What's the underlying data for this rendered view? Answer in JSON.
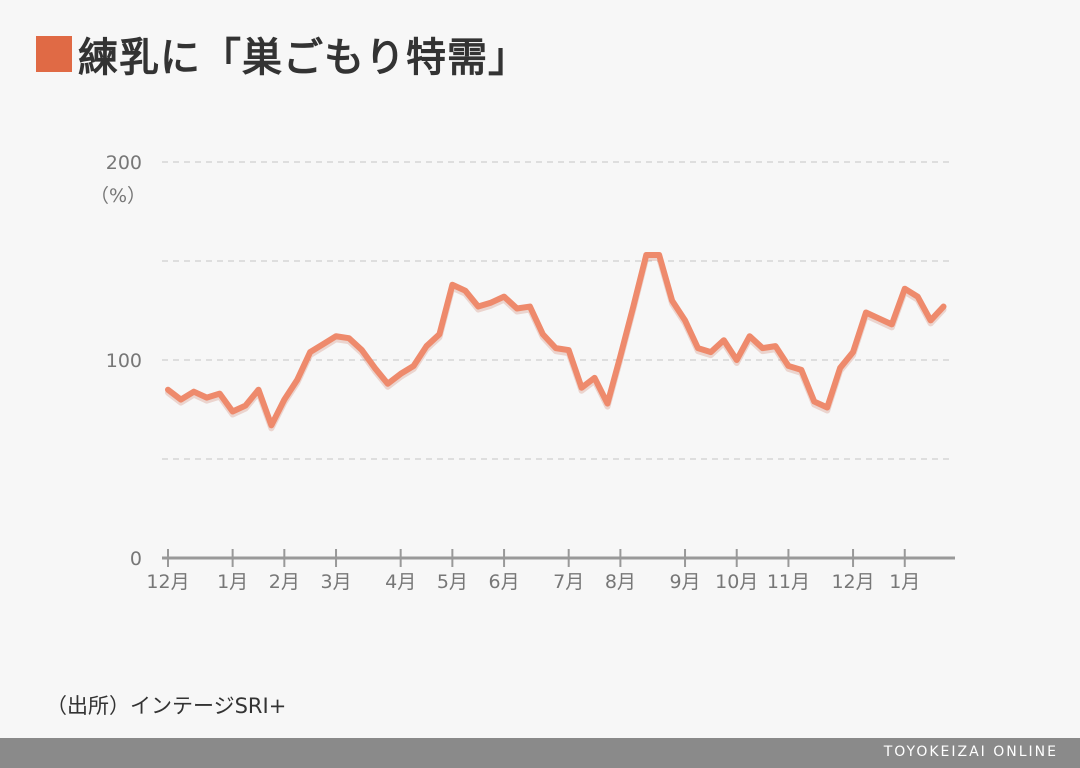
{
  "title": "練乳に「巣ごもり特需」",
  "source": "（出所）インテージSRI+",
  "footer_brand": "TOYOKEIZAI ONLINE",
  "colors": {
    "accent": "#e06a45",
    "line": "#ee8a6c",
    "axis": "#999999",
    "grid": "#d6d6d6"
  },
  "chart_data": {
    "type": "line",
    "title": "練乳に「巣ごもり特需」",
    "ylabel": "（%）",
    "ylim": [
      0,
      200
    ],
    "y_ticks": [
      {
        "value": 0,
        "label": "0"
      },
      {
        "value": 50,
        "label": ""
      },
      {
        "value": 100,
        "label": "100"
      },
      {
        "value": 150,
        "label": ""
      },
      {
        "value": 200,
        "label": "200"
      }
    ],
    "xlim": [
      0,
      60.5
    ],
    "x_ticks": [
      {
        "x": 0,
        "label": "12月"
      },
      {
        "x": 5,
        "label": "1月"
      },
      {
        "x": 9,
        "label": "2月"
      },
      {
        "x": 13,
        "label": "3月"
      },
      {
        "x": 18,
        "label": "4月"
      },
      {
        "x": 22,
        "label": "5月"
      },
      {
        "x": 26,
        "label": "6月"
      },
      {
        "x": 31,
        "label": "7月"
      },
      {
        "x": 35,
        "label": "8月"
      },
      {
        "x": 40,
        "label": "9月"
      },
      {
        "x": 44,
        "label": "10月"
      },
      {
        "x": 48,
        "label": "11月"
      },
      {
        "x": 53,
        "label": "12月"
      },
      {
        "x": 57,
        "label": "1月"
      }
    ],
    "series": [
      {
        "values": [
          85,
          80,
          84,
          81,
          83,
          74,
          77,
          85,
          67,
          80,
          90,
          104,
          108,
          112,
          111,
          105,
          96,
          88,
          93,
          97,
          107,
          113,
          138,
          135,
          127,
          129,
          132,
          126,
          127,
          113,
          106,
          105,
          86,
          91,
          78,
          102,
          127,
          153,
          153,
          130,
          120,
          106,
          104,
          110,
          100,
          112,
          106,
          107,
          97,
          95,
          79,
          76,
          96,
          104,
          124,
          121,
          118,
          136,
          132,
          120,
          127
        ]
      }
    ]
  }
}
